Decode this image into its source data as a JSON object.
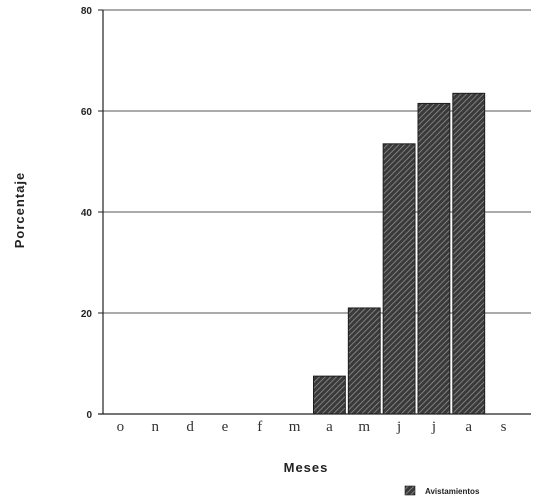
{
  "chart_data": {
    "type": "bar",
    "categories": [
      "o",
      "n",
      "d",
      "e",
      "f",
      "m",
      "a",
      "m",
      "j",
      "j",
      "a",
      "s"
    ],
    "series": [
      {
        "name": "Avistamientos",
        "values": [
          0,
          0,
          0,
          0,
          0,
          0,
          7.5,
          21,
          53.5,
          61.5,
          63.5,
          0
        ]
      }
    ],
    "xlabel": "Meses",
    "ylabel": "Porcentaje",
    "ylim": [
      0,
      80
    ],
    "yticks": [
      "0",
      "20",
      "40",
      "60",
      "80"
    ],
    "grid": true,
    "legend": "bottom-right",
    "colors": {
      "bar": "#3a3a3a",
      "hatch": "#9a9a9a",
      "grid": "#555555",
      "axis": "#222222"
    }
  }
}
